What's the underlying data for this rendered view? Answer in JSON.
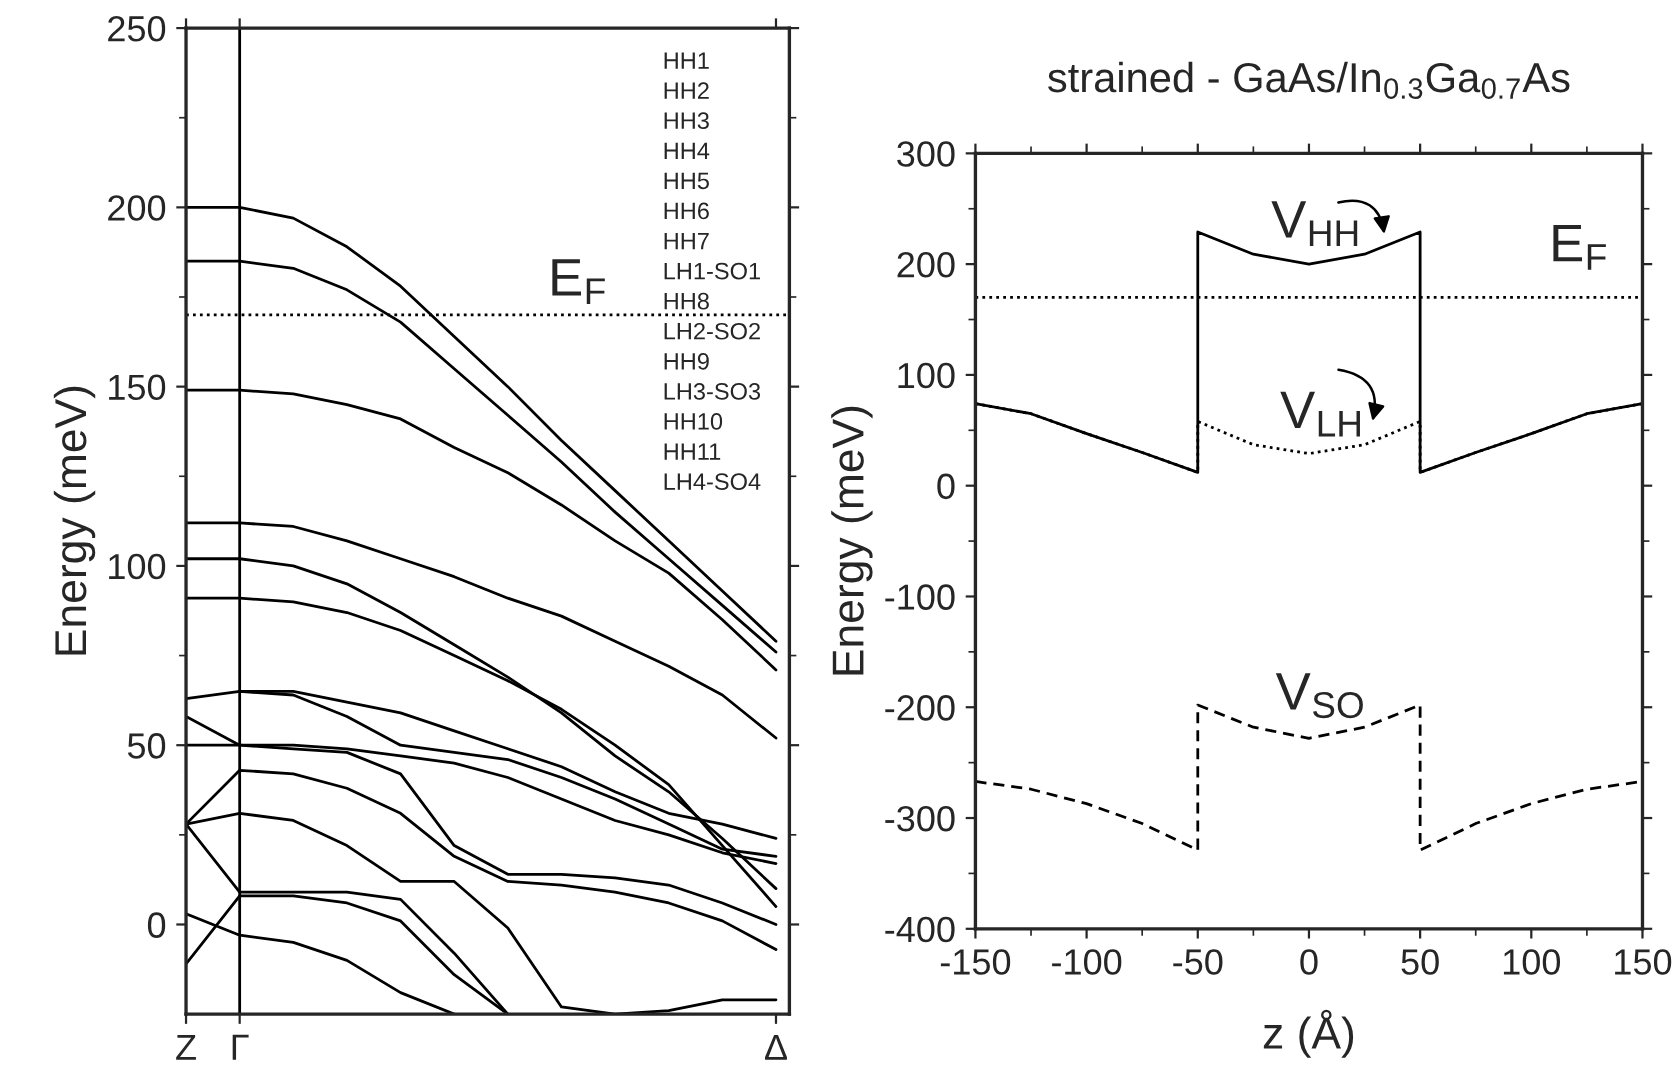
{
  "chart_data": [
    {
      "type": "line",
      "ylabel": "Energy (meV)",
      "categories": [
        "Z",
        "Γ",
        null,
        null,
        null,
        null,
        null,
        null,
        null,
        null,
        null,
        "Δ"
      ],
      "ylim": [
        -25,
        250
      ],
      "yticks": [
        0,
        {
          "value": 25,
          "label": null
        },
        50,
        {
          "value": 75,
          "label": null
        },
        100,
        {
          "value": 125,
          "label": null
        },
        150,
        {
          "value": 175,
          "label": null
        },
        200,
        {
          "value": 225,
          "label": null
        },
        250
      ],
      "ref_lines": [
        {
          "axis": "x",
          "value": "Γ",
          "color": "#000000",
          "line_style": "solid"
        },
        {
          "axis": "y",
          "value": 170,
          "label": "E$_{F}$",
          "color": "#000000",
          "line_style": "dotted"
        }
      ],
      "annotations": [
        "HH1",
        "HH2",
        "HH3",
        "HH4",
        "HH5",
        "HH6",
        "HH7",
        "LH1-SO1",
        "HH8",
        "LH2-SO2",
        "HH9",
        "LH3-SO3",
        "HH10",
        "HH11",
        "LH4-SO4"
      ],
      "series": [
        {
          "color": "#000000",
          "line_style": "solid",
          "values": [
            200,
            200,
            197,
            189,
            178,
            164,
            150,
            135,
            121,
            107,
            93,
            79
          ]
        },
        {
          "color": "#000000",
          "line_style": "solid",
          "values": [
            185,
            185,
            183,
            177,
            168,
            155,
            142,
            129,
            115,
            102,
            89,
            76
          ]
        },
        {
          "color": "#000000",
          "line_style": "solid",
          "values": [
            149,
            149,
            148,
            145,
            141,
            133,
            126,
            117,
            107,
            98,
            85,
            71
          ]
        },
        {
          "color": "#000000",
          "line_style": "solid",
          "values": [
            112,
            112,
            111,
            107,
            102,
            97,
            91,
            86,
            79,
            72,
            64,
            52
          ]
        },
        {
          "color": "#000000",
          "line_style": "solid",
          "values": [
            102,
            102,
            100,
            95,
            87,
            78,
            69,
            59,
            47,
            37,
            24,
            10
          ]
        },
        {
          "color": "#000000",
          "line_style": "solid",
          "values": [
            91,
            91,
            90,
            87,
            82,
            75,
            68,
            60,
            50,
            39,
            22,
            5
          ]
        },
        {
          "color": "#000000",
          "line_style": "solid",
          "values": [
            63,
            65,
            65,
            62,
            59,
            54,
            49,
            44,
            37,
            31,
            28,
            24
          ]
        },
        {
          "color": "#000000",
          "line_style": "solid",
          "values": [
            null,
            65,
            64,
            58,
            50,
            48,
            46,
            41,
            35,
            28,
            21,
            19
          ]
        },
        {
          "color": "#000000",
          "line_style": "solid",
          "values": [
            58,
            50,
            50,
            49,
            47,
            45,
            41,
            35,
            29,
            25,
            20,
            17
          ]
        },
        {
          "color": "#000000",
          "line_style": "solid",
          "values": [
            50,
            50,
            49,
            48,
            42,
            22,
            14,
            14,
            13,
            11,
            6,
            0
          ]
        },
        {
          "color": "#000000",
          "line_style": "solid",
          "values": [
            28,
            43,
            42,
            38,
            31,
            19,
            12,
            11,
            9,
            6,
            1,
            -7
          ]
        },
        {
          "color": "#000000",
          "line_style": "solid",
          "values": [
            28,
            31,
            29,
            22,
            12,
            12,
            -1,
            -23,
            -25,
            -24,
            -21,
            -21
          ]
        },
        {
          "color": "#000000",
          "line_style": "solid",
          "values": [
            28,
            9,
            9,
            9,
            7,
            -8,
            -25,
            null,
            null,
            null,
            null,
            null
          ]
        },
        {
          "color": "#000000",
          "line_style": "solid",
          "values": [
            -11,
            8,
            8,
            6,
            1,
            -14,
            -25,
            null,
            null,
            null,
            null,
            null
          ]
        },
        {
          "color": "#000000",
          "line_style": "solid",
          "values": [
            3,
            -3,
            -5,
            -10,
            -19,
            -25,
            null,
            null,
            null,
            null,
            null,
            null
          ]
        }
      ]
    },
    {
      "type": "line",
      "title": "strained - GaAs/In$_{0.3}$Ga$_{0.7}$As",
      "xlabel": "z (Å)",
      "ylabel": "Energy (meV)",
      "xlim": [
        -150,
        150
      ],
      "xticks": [
        -150,
        {
          "value": -125,
          "label": null
        },
        -100,
        {
          "value": -75,
          "label": null
        },
        -50,
        {
          "value": -25,
          "label": null
        },
        0,
        {
          "value": 25,
          "label": null
        },
        50,
        {
          "value": 75,
          "label": null
        },
        100,
        {
          "value": 125,
          "label": null
        },
        150
      ],
      "ylim": [
        -400,
        300
      ],
      "yticks": [
        -400,
        {
          "value": -350,
          "label": null
        },
        -300,
        {
          "value": -250,
          "label": null
        },
        -200,
        {
          "value": -150,
          "label": null
        },
        -100,
        {
          "value": -50,
          "label": null
        },
        0,
        {
          "value": 50,
          "label": null
        },
        100,
        {
          "value": 150,
          "label": null
        },
        200,
        {
          "value": 250,
          "label": null
        },
        300
      ],
      "ref_lines": [
        {
          "axis": "y",
          "value": 170,
          "label": "E$_{F}$",
          "color": "#000000",
          "line_style": "dotted"
        }
      ],
      "annotations": [
        {
          "text": "V$_{HH}$",
          "x": -17,
          "y": 204
        },
        {
          "text": "V$_{LH}$",
          "x": -13,
          "y": 32
        },
        {
          "text": "V$_{SO}$",
          "x": -15,
          "y": -222
        }
      ],
      "series": [
        {
          "color": "#000000",
          "line_style": "dotted",
          "x": [
            -150,
            -125,
            -100,
            -75,
            -50,
            -50,
            -25,
            0,
            25,
            50,
            50,
            75,
            100,
            125,
            150
          ],
          "values": [
            74,
            65,
            47,
            30,
            12,
            58,
            37,
            29,
            37,
            58,
            12,
            30,
            47,
            65,
            74
          ]
        },
        {
          "color": "#000000",
          "line_style": "solid",
          "x": [
            -150,
            -125,
            -100,
            -75,
            -50,
            -50,
            -25,
            0,
            25,
            50,
            50,
            75,
            100,
            125,
            150
          ],
          "values": [
            74,
            65,
            47,
            30,
            12,
            229,
            209,
            200,
            209,
            229,
            12,
            30,
            47,
            65,
            74
          ]
        },
        {
          "color": "#000000",
          "line_style": "dashed",
          "x": [
            -150,
            -125,
            -100,
            -75,
            -50,
            -50,
            -25,
            0,
            25,
            50,
            50,
            75,
            100,
            125,
            150
          ],
          "values": [
            -267,
            -274,
            -287,
            -305,
            -329,
            -198,
            -218,
            -228,
            -218,
            -198,
            -329,
            -305,
            -287,
            -274,
            -267
          ]
        }
      ]
    }
  ]
}
